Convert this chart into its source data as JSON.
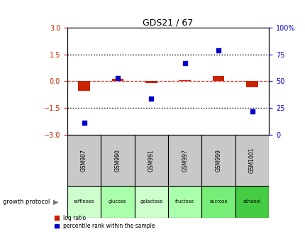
{
  "title": "GDS21 / 67",
  "samples": [
    "GSM907",
    "GSM990",
    "GSM991",
    "GSM997",
    "GSM999",
    "GSM1001"
  ],
  "protocols": [
    "raffinose",
    "glucose",
    "galactose",
    "fructose",
    "sucrose",
    "ethanol"
  ],
  "log_ratio": [
    -0.55,
    0.12,
    -0.12,
    0.07,
    0.28,
    -0.33
  ],
  "percentile_rank": [
    11,
    53,
    34,
    67,
    79,
    22
  ],
  "ylim_left": [
    -3,
    3
  ],
  "ylim_right": [
    0,
    100
  ],
  "yticks_left": [
    -3,
    -1.5,
    0,
    1.5,
    3
  ],
  "yticks_right": [
    0,
    25,
    50,
    75,
    100
  ],
  "bar_color": "#cc2200",
  "scatter_color": "#0000cc",
  "bg_color": "#ffffff",
  "protocol_colors": [
    "#ccffcc",
    "#aaffaa",
    "#ccffcc",
    "#aaffaa",
    "#77ee77",
    "#44cc44"
  ],
  "header_color": "#c8c8c8",
  "left_tick_color": "#cc2200",
  "right_tick_color": "#0000cc",
  "legend_items": [
    "log ratio",
    "percentile rank within the sample"
  ],
  "bar_width": 0.35,
  "scatter_size": 25
}
